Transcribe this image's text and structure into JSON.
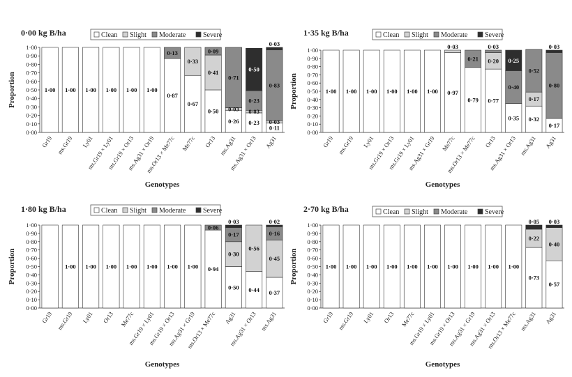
{
  "legend": {
    "entries": [
      {
        "key": "clean",
        "label": "Clean",
        "color": "#ffffff"
      },
      {
        "key": "slight",
        "label": "Slight",
        "color": "#d2d2d2"
      },
      {
        "key": "moderate",
        "label": "Moderate",
        "color": "#8a8a8a"
      },
      {
        "key": "severe",
        "label": "Severe",
        "color": "#2e2e2e"
      }
    ]
  },
  "chart_data": [
    {
      "type": "bar",
      "stacked": true,
      "title": "0·00 kg B/ha",
      "xlabel": "Genotypes",
      "ylabel": "Proportion",
      "ylim": [
        0,
        1
      ],
      "yticks": [
        "0·00",
        "0·10",
        "0·20",
        "0·30",
        "0·40",
        "0·50",
        "0·60",
        "0·70",
        "0·80",
        "0·90",
        "1·00"
      ],
      "legend_position": "top",
      "categories": [
        "Gr19",
        "ms.Gr19",
        "Ly01",
        "ms.Gr19 × Ly01",
        "ms.Gr19 × Or13",
        "ms.Ag31 × Or19",
        "ms.Or13 × Me77c",
        "Me77c",
        "Or13",
        "ms.Ag31",
        "ms.Ag31 × Or13",
        "Ag31"
      ],
      "series": [
        {
          "name": "Clean",
          "values": [
            1,
            1,
            1,
            1,
            1,
            1,
            0.87,
            0.67,
            0.5,
            0.26,
            0.23,
            0.11
          ]
        },
        {
          "name": "Slight",
          "values": [
            0,
            0,
            0,
            0,
            0,
            0,
            0,
            0.33,
            0.41,
            0.03,
            0.03,
            0.03
          ]
        },
        {
          "name": "Moderate",
          "values": [
            0,
            0,
            0,
            0,
            0,
            0,
            0.13,
            0,
            0.09,
            0.71,
            0.23,
            0.83
          ]
        },
        {
          "name": "Severe",
          "values": [
            0,
            0,
            0,
            0,
            0,
            0,
            0,
            0,
            0,
            0,
            0.5,
            0.03
          ]
        }
      ],
      "labels": [
        [
          {
            "text": "1·00",
            "s": 0
          }
        ],
        [
          {
            "text": "1·00",
            "s": 0
          }
        ],
        [
          {
            "text": "1·00",
            "s": 0
          }
        ],
        [
          {
            "text": "1·00",
            "s": 0
          }
        ],
        [
          {
            "text": "1·00",
            "s": 0
          }
        ],
        [
          {
            "text": "1·00",
            "s": 0
          }
        ],
        [
          {
            "text": "0·87",
            "s": 0
          },
          {
            "text": "0·13",
            "s": 2
          }
        ],
        [
          {
            "text": "0·67",
            "s": 0
          },
          {
            "text": "0·33",
            "s": 1
          }
        ],
        [
          {
            "text": "0·50",
            "s": 0
          },
          {
            "text": "0·41",
            "s": 1
          },
          {
            "text": "0·09",
            "s": 2
          }
        ],
        [
          {
            "text": "0·26",
            "s": 0
          },
          {
            "text": "0·03",
            "s": 1
          },
          {
            "text": "0·71",
            "s": 2
          }
        ],
        [
          {
            "text": "0·23",
            "s": 0
          },
          {
            "text": "0·03",
            "s": 1
          },
          {
            "text": "0·23",
            "s": 2
          },
          {
            "text": "0·50",
            "s": 3
          }
        ],
        [
          {
            "text": "0·11",
            "s": 0
          },
          {
            "text": "0·03",
            "s": 1
          },
          {
            "text": "0·83",
            "s": 2
          },
          {
            "text": "0·03",
            "s": 3,
            "above": true
          }
        ]
      ]
    },
    {
      "type": "bar",
      "stacked": true,
      "title": "1·35 kg B/ha",
      "xlabel": "Genotypes",
      "ylabel": "Proportion",
      "ylim": [
        0,
        1
      ],
      "yticks": [
        "0·00",
        "0·10",
        "0·20",
        "0·30",
        "0·40",
        "0·50",
        "0·60",
        "0·70",
        "0·80",
        "0·90",
        "1·00"
      ],
      "legend_position": "top",
      "categories": [
        "Gr19",
        "ms.Gr19",
        "Ly01",
        "ms.Gr19 × Or13",
        "ms.Gr19 × Ly01",
        "ms.Ag31 × Gr19",
        "Me77c",
        "ms.Or13 × Me77c",
        "Or13",
        "ms.Ag31 × Or13",
        "ms.Ag31",
        "Ag31"
      ],
      "series": [
        {
          "name": "Clean",
          "values": [
            1,
            1,
            1,
            1,
            1,
            1,
            0.97,
            0.79,
            0.77,
            0.35,
            0.32,
            0.17
          ]
        },
        {
          "name": "Slight",
          "values": [
            0,
            0,
            0,
            0,
            0,
            0,
            0.03,
            0,
            0.2,
            0,
            0.17,
            0
          ]
        },
        {
          "name": "Moderate",
          "values": [
            0,
            0,
            0,
            0,
            0,
            0,
            0,
            0.21,
            0.03,
            0.4,
            0.52,
            0.8
          ]
        },
        {
          "name": "Severe",
          "values": [
            0,
            0,
            0,
            0,
            0,
            0,
            0,
            0,
            0,
            0.25,
            0,
            0.03
          ]
        }
      ],
      "labels": [
        [
          {
            "text": "1·00",
            "s": 0
          }
        ],
        [
          {
            "text": "1·00",
            "s": 0
          }
        ],
        [
          {
            "text": "1·00",
            "s": 0
          }
        ],
        [
          {
            "text": "1·00",
            "s": 0
          }
        ],
        [
          {
            "text": "1·00",
            "s": 0
          }
        ],
        [
          {
            "text": "1·00",
            "s": 0
          }
        ],
        [
          {
            "text": "0·97",
            "s": 0
          },
          {
            "text": "0·03",
            "s": 1,
            "above": true
          }
        ],
        [
          {
            "text": "0·79",
            "s": 0
          },
          {
            "text": "0·21",
            "s": 2
          }
        ],
        [
          {
            "text": "0·77",
            "s": 0
          },
          {
            "text": "0·20",
            "s": 1
          },
          {
            "text": "0·03",
            "s": 2,
            "above": true
          }
        ],
        [
          {
            "text": "0·35",
            "s": 0
          },
          {
            "text": "0·40",
            "s": 2
          },
          {
            "text": "0·25",
            "s": 3
          }
        ],
        [
          {
            "text": "0·32",
            "s": 0
          },
          {
            "text": "0·17",
            "s": 1
          },
          {
            "text": "0·52",
            "s": 2
          }
        ],
        [
          {
            "text": "0·17",
            "s": 0
          },
          {
            "text": "0·80",
            "s": 2
          },
          {
            "text": "0·03",
            "s": 3,
            "above": true
          }
        ]
      ]
    },
    {
      "type": "bar",
      "stacked": true,
      "title": "1·80 kg B/ha",
      "xlabel": "Genotypes",
      "ylabel": "Proportion",
      "ylim": [
        0,
        1
      ],
      "yticks": [
        "0·00",
        "0·10",
        "0·20",
        "0·30",
        "0·40",
        "0·50",
        "0·60",
        "0·70",
        "0·80",
        "0·90",
        "1·00"
      ],
      "legend_position": "top",
      "categories": [
        "Gr19",
        "ms.Gr19",
        "Ly01",
        "Or13",
        "Me77c",
        "ms.Gr19 × Ly01",
        "ms.Gr19 × Or13",
        "ms.Ag31 × Gr19",
        "ms.Or13 × Me77c",
        "Ag31",
        "ms.Ag31 × Or13",
        "ms.Ag31"
      ],
      "series": [
        {
          "name": "Clean",
          "values": [
            1,
            1,
            1,
            1,
            1,
            1,
            1,
            1,
            0.94,
            0.5,
            0.44,
            0.37
          ]
        },
        {
          "name": "Slight",
          "values": [
            0,
            0,
            0,
            0,
            0,
            0,
            0,
            0,
            0,
            0.3,
            0.56,
            0.45
          ]
        },
        {
          "name": "Moderate",
          "values": [
            0,
            0,
            0,
            0,
            0,
            0,
            0,
            0,
            0.06,
            0.17,
            0,
            0.16
          ]
        },
        {
          "name": "Severe",
          "values": [
            0,
            0,
            0,
            0,
            0,
            0,
            0,
            0,
            0,
            0.03,
            0,
            0.02
          ]
        }
      ],
      "labels": [
        [],
        [
          {
            "text": "1·00",
            "s": 0
          }
        ],
        [
          {
            "text": "1·00",
            "s": 0
          }
        ],
        [
          {
            "text": "1·00",
            "s": 0
          }
        ],
        [
          {
            "text": "1·00",
            "s": 0
          }
        ],
        [
          {
            "text": "1·00",
            "s": 0
          }
        ],
        [
          {
            "text": "1·00",
            "s": 0
          }
        ],
        [
          {
            "text": "1·00",
            "s": 0
          }
        ],
        [
          {
            "text": "0·94",
            "s": 0
          },
          {
            "text": "0·06",
            "s": 2
          }
        ],
        [
          {
            "text": "0·50",
            "s": 0
          },
          {
            "text": "0·30",
            "s": 1
          },
          {
            "text": "0·17",
            "s": 2
          },
          {
            "text": "0·03",
            "s": 3,
            "above": true
          }
        ],
        [
          {
            "text": "0·44",
            "s": 0
          },
          {
            "text": "0·56",
            "s": 1
          }
        ],
        [
          {
            "text": "0·37",
            "s": 0
          },
          {
            "text": "0·45",
            "s": 1
          },
          {
            "text": "0·16",
            "s": 2
          },
          {
            "text": "0·02",
            "s": 3,
            "above": true
          }
        ]
      ]
    },
    {
      "type": "bar",
      "stacked": true,
      "title": "2·70 kg B/ha",
      "xlabel": "Genotypes",
      "ylabel": "Proportion",
      "ylim": [
        0,
        1
      ],
      "yticks": [
        "0·00",
        "0·10",
        "0·20",
        "0·30",
        "0·40",
        "0·50",
        "0·60",
        "0·70",
        "0·80",
        "0·90",
        "1·00"
      ],
      "legend_position": "top",
      "categories": [
        "Gr19",
        "ms.Gr19",
        "Ly01",
        "Or13",
        "Me77c",
        "ms.Gr19 × Ly01",
        "ms.Gr19 × Or13",
        "ms.Ag31 × Gr19",
        "ms.Ag31 × Or13",
        "ms.Or13 × Me77c",
        "ms.Ag31",
        "Ag31"
      ],
      "series": [
        {
          "name": "Clean",
          "values": [
            1,
            1,
            1,
            1,
            1,
            1,
            1,
            1,
            1,
            1,
            0.73,
            0.57
          ]
        },
        {
          "name": "Slight",
          "values": [
            0,
            0,
            0,
            0,
            0,
            0,
            0,
            0,
            0,
            0,
            0.22,
            0.4
          ]
        },
        {
          "name": "Moderate",
          "values": [
            0,
            0,
            0,
            0,
            0,
            0,
            0,
            0,
            0,
            0,
            0,
            0
          ]
        },
        {
          "name": "Severe",
          "values": [
            0,
            0,
            0,
            0,
            0,
            0,
            0,
            0,
            0,
            0,
            0.05,
            0.03
          ]
        }
      ],
      "labels": [
        [
          {
            "text": "1·00",
            "s": 0
          }
        ],
        [
          {
            "text": "1·00",
            "s": 0
          }
        ],
        [
          {
            "text": "1·00",
            "s": 0
          }
        ],
        [
          {
            "text": "1·00",
            "s": 0
          }
        ],
        [
          {
            "text": "1·00",
            "s": 0
          }
        ],
        [
          {
            "text": "1·00",
            "s": 0
          }
        ],
        [
          {
            "text": "1·00",
            "s": 0
          }
        ],
        [
          {
            "text": "1·00",
            "s": 0
          }
        ],
        [
          {
            "text": "1·00",
            "s": 0
          }
        ],
        [
          {
            "text": "1·00",
            "s": 0
          }
        ],
        [
          {
            "text": "0·73",
            "s": 0
          },
          {
            "text": "0·22",
            "s": 1
          },
          {
            "text": "0·05",
            "s": 3,
            "above": true
          }
        ],
        [
          {
            "text": "0·57",
            "s": 0
          },
          {
            "text": "0·40",
            "s": 1
          },
          {
            "text": "0·03",
            "s": 3,
            "above": true
          }
        ]
      ]
    }
  ]
}
